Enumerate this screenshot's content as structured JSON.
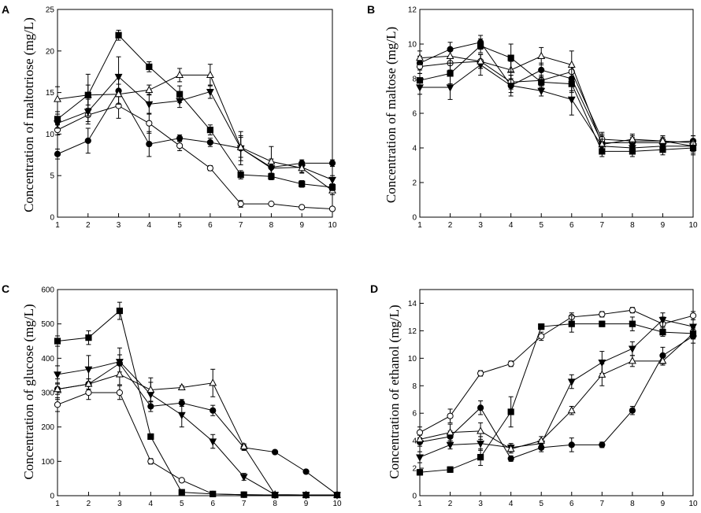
{
  "chart_data": [
    {
      "type": "line",
      "panel_label": "A",
      "ylabel": "Concentration of maltotriose (mg/L)",
      "xlabel": "",
      "ylim": [
        0,
        25
      ],
      "yticks": [
        "0",
        "5",
        "10",
        "15",
        "20",
        "25"
      ],
      "x": [
        1,
        2,
        3,
        4,
        5,
        6,
        7,
        8,
        9,
        10
      ],
      "xticks": [
        "1",
        "2",
        "3",
        "4",
        "5",
        "6",
        "7",
        "8",
        "9",
        "10"
      ],
      "series": [
        {
          "name": "filled circle",
          "marker": "circle-filled",
          "values": [
            7.6,
            9.2,
            15.2,
            8.8,
            9.5,
            9.0,
            8.3,
            6.0,
            6.5,
            6.5
          ],
          "errors": [
            0.6,
            1.5,
            1.8,
            1.5,
            0.4,
            0.5,
            1.5,
            1.0,
            0.4,
            0.4
          ]
        },
        {
          "name": "open circle",
          "marker": "circle-open",
          "values": [
            10.5,
            12.3,
            13.4,
            11.3,
            8.6,
            5.9,
            1.6,
            1.6,
            1.2,
            1.0
          ],
          "errors": [
            0.6,
            0.8,
            1.5,
            1.2,
            0.6,
            0.3,
            0.4,
            0.2,
            0.1,
            0.1
          ]
        },
        {
          "name": "filled triangle down",
          "marker": "triangle-down-filled",
          "values": [
            11.3,
            12.7,
            16.9,
            13.6,
            14.0,
            15.1,
            8.3,
            5.9,
            6.0,
            4.5
          ],
          "errors": [
            0.6,
            1.5,
            2.4,
            1.2,
            0.8,
            0.8,
            2.0,
            0.7,
            0.6,
            0.5
          ]
        },
        {
          "name": "open triangle",
          "marker": "triangle-up-open",
          "values": [
            14.2,
            14.7,
            14.8,
            15.3,
            17.1,
            17.1,
            8.4,
            6.7,
            5.9,
            3.2
          ],
          "errors": [
            1.5,
            1.2,
            1.2,
            0.6,
            0.8,
            1.3,
            1.2,
            1.8,
            0.6,
            0.5
          ]
        },
        {
          "name": "filled square",
          "marker": "square-filled",
          "values": [
            11.8,
            14.7,
            21.9,
            18.1,
            14.8,
            10.5,
            5.1,
            4.9,
            4.0,
            3.6
          ],
          "errors": [
            0.6,
            2.5,
            0.6,
            0.6,
            1.0,
            0.6,
            0.5,
            0.4,
            0.4,
            0.4
          ]
        }
      ]
    },
    {
      "type": "line",
      "panel_label": "B",
      "ylabel": "Concentration of maltose (mg/L)",
      "xlabel": "",
      "ylim": [
        0,
        12
      ],
      "yticks": [
        "0",
        "2",
        "4",
        "6",
        "8",
        "10",
        "12"
      ],
      "x": [
        1,
        2,
        3,
        4,
        5,
        6,
        7,
        8,
        9,
        10
      ],
      "xticks": [
        "1",
        "2",
        "3",
        "4",
        "5",
        "6",
        "7",
        "8",
        "9",
        "10"
      ],
      "series": [
        {
          "name": "filled circle",
          "marker": "circle-filled",
          "values": [
            8.9,
            9.7,
            10.1,
            7.6,
            8.5,
            8.0,
            4.3,
            4.3,
            4.3,
            4.4
          ],
          "errors": [
            0.4,
            0.4,
            0.4,
            0.6,
            0.4,
            0.8,
            0.6,
            0.3,
            0.3,
            0.3
          ]
        },
        {
          "name": "open circle",
          "marker": "circle-open",
          "values": [
            8.7,
            8.9,
            9.0,
            7.8,
            7.9,
            8.4,
            4.5,
            4.4,
            4.4,
            4.1
          ],
          "errors": [
            0.4,
            0.4,
            0.4,
            0.4,
            0.3,
            0.4,
            0.3,
            0.3,
            0.3,
            0.3
          ]
        },
        {
          "name": "filled triangle down",
          "marker": "triangle-down-filled",
          "values": [
            7.5,
            7.5,
            8.8,
            7.6,
            7.3,
            6.8,
            4.1,
            4.0,
            4.1,
            4.1
          ],
          "errors": [
            0.4,
            0.7,
            0.6,
            0.4,
            0.3,
            0.9,
            0.4,
            0.3,
            0.3,
            0.4
          ]
        },
        {
          "name": "open triangle",
          "marker": "triangle-up-open",
          "values": [
            9.2,
            9.3,
            9.0,
            8.5,
            9.3,
            8.8,
            4.2,
            4.5,
            4.4,
            4.3
          ],
          "errors": [
            0.4,
            0.4,
            0.4,
            0.5,
            0.5,
            0.8,
            0.5,
            0.3,
            0.3,
            0.4
          ]
        },
        {
          "name": "filled square",
          "marker": "square-filled",
          "values": [
            7.9,
            8.3,
            9.9,
            9.2,
            7.8,
            7.7,
            3.8,
            3.8,
            3.9,
            4.0
          ],
          "errors": [
            0.4,
            0.6,
            0.4,
            0.8,
            0.3,
            0.4,
            0.3,
            0.3,
            0.3,
            0.4
          ]
        }
      ]
    },
    {
      "type": "line",
      "panel_label": "C",
      "ylabel": "Concentration of glucose (mg/L)",
      "xlabel": "",
      "ylim": [
        0,
        600
      ],
      "yticks": [
        "0",
        "100",
        "200",
        "300",
        "400",
        "500",
        "600"
      ],
      "x": [
        1,
        2,
        3,
        4,
        5,
        6,
        7,
        8,
        9,
        10
      ],
      "xticks": [
        "1",
        "2",
        "3",
        "4",
        "5",
        "6",
        "7",
        "8",
        "9",
        "10"
      ],
      "series": [
        {
          "name": "filled circle",
          "marker": "circle-filled",
          "values": [
            310,
            325,
            385,
            260,
            270,
            248,
            140,
            127,
            70,
            3
          ],
          "errors": [
            15,
            15,
            25,
            15,
            10,
            15,
            8,
            5,
            5,
            2
          ]
        },
        {
          "name": "open circle",
          "marker": "circle-open",
          "values": [
            265,
            300,
            300,
            100,
            45,
            5,
            3,
            2,
            2,
            2
          ],
          "errors": [
            20,
            20,
            20,
            8,
            5,
            3,
            2,
            2,
            2,
            2
          ]
        },
        {
          "name": "filled triangle down",
          "marker": "triangle-down-filled",
          "values": [
            353,
            368,
            390,
            295,
            235,
            158,
            55,
            3,
            2,
            2
          ],
          "errors": [
            25,
            40,
            40,
            35,
            35,
            20,
            10,
            2,
            2,
            2
          ]
        },
        {
          "name": "open triangle",
          "marker": "triangle-up-open",
          "values": [
            310,
            325,
            353,
            308,
            315,
            328,
            143,
            3,
            2,
            2
          ],
          "errors": [
            30,
            15,
            30,
            35,
            5,
            40,
            8,
            2,
            2,
            2
          ]
        },
        {
          "name": "filled square",
          "marker": "square-filled",
          "values": [
            450,
            460,
            538,
            172,
            10,
            5,
            3,
            2,
            2,
            2
          ],
          "errors": [
            15,
            20,
            25,
            5,
            3,
            2,
            2,
            2,
            2,
            2
          ]
        }
      ]
    },
    {
      "type": "line",
      "panel_label": "D",
      "ylabel": "Concentration of ethanol (mg/L)",
      "xlabel": "",
      "ylim": [
        0,
        15
      ],
      "yticks": [
        "0",
        "2",
        "4",
        "6",
        "8",
        "10",
        "12",
        "14"
      ],
      "x": [
        1,
        2,
        3,
        4,
        5,
        6,
        7,
        8,
        9,
        10
      ],
      "xticks": [
        "1",
        "2",
        "3",
        "4",
        "5",
        "6",
        "7",
        "8",
        "9",
        "10"
      ],
      "series": [
        {
          "name": "filled circle",
          "marker": "circle-filled",
          "values": [
            3.9,
            4.3,
            6.4,
            2.7,
            3.5,
            3.7,
            3.7,
            6.2,
            10.2,
            11.6
          ],
          "errors": [
            0.3,
            0.4,
            0.5,
            0.2,
            0.3,
            0.5,
            0.2,
            0.3,
            0.6,
            0.5
          ]
        },
        {
          "name": "open circle",
          "marker": "circle-open",
          "values": [
            4.6,
            5.8,
            8.9,
            9.6,
            11.6,
            13.0,
            13.2,
            13.5,
            12.5,
            13.1
          ],
          "errors": [
            0.4,
            0.5,
            0.2,
            0.2,
            0.3,
            0.3,
            0.2,
            0.2,
            0.5,
            0.3
          ]
        },
        {
          "name": "filled triangle down",
          "marker": "triangle-down-filled",
          "values": [
            2.8,
            3.7,
            3.8,
            3.5,
            3.8,
            8.3,
            9.7,
            10.7,
            12.8,
            12.3
          ],
          "errors": [
            0.4,
            0.3,
            0.5,
            0.3,
            0.3,
            0.5,
            0.8,
            0.5,
            0.5,
            0.5
          ]
        },
        {
          "name": "open triangle",
          "marker": "triangle-up-open",
          "values": [
            4.1,
            4.6,
            4.7,
            3.4,
            4.0,
            6.2,
            8.8,
            9.8,
            9.8,
            11.8
          ],
          "errors": [
            0.3,
            0.6,
            0.6,
            0.3,
            0.3,
            0.3,
            0.8,
            0.4,
            0.3,
            0.4
          ]
        },
        {
          "name": "filled square",
          "marker": "square-filled",
          "values": [
            1.7,
            1.9,
            2.8,
            6.1,
            12.3,
            12.5,
            12.5,
            12.5,
            11.9,
            11.8
          ],
          "errors": [
            0.2,
            0.2,
            0.6,
            1.1,
            0.2,
            0.6,
            0.2,
            0.5,
            0.3,
            0.3
          ]
        }
      ]
    }
  ]
}
